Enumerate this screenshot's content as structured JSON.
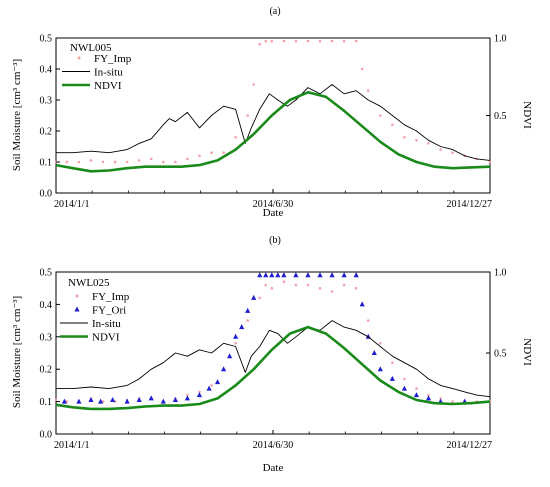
{
  "figure": {
    "panel_labels": [
      "(a)",
      "(b)"
    ]
  },
  "chart_data": [
    {
      "type": "line",
      "panel": "(a)",
      "station": "NWL005",
      "xlabel": "Date",
      "ylabel": "Soil Moisture [cm³ cm⁻³]",
      "ylabel_right": "NDVI",
      "xlim": [
        "2014-01-01",
        "2014-12-27"
      ],
      "ylim": [
        0,
        0.5
      ],
      "ylim_right": [
        0,
        1.0
      ],
      "x_ticks": [
        "2014/1/1",
        "2014/6/30",
        "2014/12/27"
      ],
      "y_ticks": [
        "0.0",
        "0.1",
        "0.2",
        "0.3",
        "0.4",
        "0.5"
      ],
      "y_ticks_right": [
        "1.0",
        "0.5"
      ],
      "legend_position": "top-left",
      "series": [
        {
          "name": "FY_Imp",
          "style": "scatter-dots",
          "color": "#f4a0a6",
          "x_doy": [
            1,
            10,
            20,
            30,
            40,
            50,
            60,
            70,
            80,
            90,
            100,
            110,
            120,
            130,
            140,
            150,
            160,
            165,
            170,
            175,
            180,
            190,
            200,
            210,
            220,
            230,
            240,
            250,
            255,
            260,
            270,
            280,
            290,
            300,
            310,
            320,
            330,
            340,
            350,
            361
          ],
          "y": [
            0.1,
            0.1,
            0.1,
            0.105,
            0.1,
            0.1,
            0.1,
            0.105,
            0.11,
            0.1,
            0.1,
            0.11,
            0.12,
            0.13,
            0.13,
            0.18,
            0.25,
            0.35,
            0.48,
            0.49,
            0.49,
            0.49,
            0.49,
            0.49,
            0.49,
            0.49,
            0.49,
            0.49,
            0.4,
            0.33,
            0.25,
            0.22,
            0.18,
            0.17,
            0.16,
            0.14,
            0.13,
            0.12,
            0.11,
            0.1
          ]
        },
        {
          "name": "In-situ",
          "style": "line",
          "color": "#000000",
          "x_doy": [
            1,
            15,
            30,
            45,
            60,
            70,
            80,
            90,
            95,
            100,
            110,
            120,
            130,
            140,
            150,
            158,
            163,
            170,
            178,
            185,
            193,
            200,
            210,
            220,
            230,
            240,
            250,
            260,
            270,
            280,
            290,
            300,
            310,
            320,
            330,
            340,
            350,
            361
          ],
          "y": [
            0.13,
            0.13,
            0.135,
            0.13,
            0.14,
            0.16,
            0.175,
            0.22,
            0.24,
            0.23,
            0.26,
            0.21,
            0.25,
            0.28,
            0.27,
            0.16,
            0.21,
            0.27,
            0.32,
            0.3,
            0.28,
            0.3,
            0.34,
            0.32,
            0.35,
            0.32,
            0.33,
            0.3,
            0.28,
            0.25,
            0.22,
            0.2,
            0.17,
            0.15,
            0.14,
            0.12,
            0.11,
            0.105
          ]
        },
        {
          "name": "NDVI",
          "style": "line-thick",
          "axis": "right",
          "color": "#1a8a1a",
          "x_doy": [
            1,
            15,
            30,
            45,
            60,
            75,
            90,
            105,
            120,
            135,
            150,
            165,
            180,
            195,
            210,
            225,
            240,
            255,
            270,
            285,
            300,
            315,
            330,
            345,
            361
          ],
          "y": [
            0.18,
            0.16,
            0.14,
            0.145,
            0.16,
            0.17,
            0.17,
            0.17,
            0.18,
            0.21,
            0.28,
            0.38,
            0.5,
            0.6,
            0.65,
            0.62,
            0.53,
            0.43,
            0.33,
            0.25,
            0.2,
            0.17,
            0.16,
            0.165,
            0.17
          ]
        }
      ]
    },
    {
      "type": "line",
      "panel": "(b)",
      "station": "NWL025",
      "xlabel": "Date",
      "ylabel": "Soil Moisture [cm³ cm⁻³]",
      "ylabel_right": "NDVI",
      "xlim": [
        "2014-01-01",
        "2014-12-27"
      ],
      "ylim": [
        0,
        0.5
      ],
      "ylim_right": [
        0,
        1.0
      ],
      "x_ticks": [
        "2014/1/1",
        "2014/6/30",
        "2014/12/27"
      ],
      "y_ticks": [
        "0.0",
        "0.1",
        "0.2",
        "0.3",
        "0.4",
        "0.5"
      ],
      "y_ticks_right": [
        "1.0",
        "0.5"
      ],
      "legend_position": "top-left",
      "series": [
        {
          "name": "FY_Imp",
          "style": "scatter-dots",
          "color": "#f4a0a6",
          "x_doy": [
            1,
            10,
            20,
            30,
            40,
            50,
            60,
            70,
            80,
            90,
            100,
            110,
            120,
            130,
            140,
            150,
            160,
            170,
            175,
            180,
            190,
            200,
            210,
            220,
            230,
            240,
            250,
            260,
            270,
            280,
            290,
            300,
            310,
            320,
            330,
            340,
            350,
            361
          ],
          "y": [
            0.105,
            0.1,
            0.1,
            0.11,
            0.1,
            0.1,
            0.105,
            0.11,
            0.11,
            0.1,
            0.11,
            0.12,
            0.13,
            0.15,
            0.2,
            0.28,
            0.35,
            0.42,
            0.46,
            0.45,
            0.47,
            0.46,
            0.46,
            0.45,
            0.44,
            0.46,
            0.45,
            0.35,
            0.28,
            0.22,
            0.17,
            0.14,
            0.12,
            0.11,
            0.1,
            0.1,
            0.1,
            0.1
          ]
        },
        {
          "name": "FY_Ori",
          "style": "scatter-triangles",
          "color": "#1f1fcf",
          "x_doy": [
            8,
            20,
            30,
            38,
            48,
            60,
            70,
            80,
            90,
            100,
            110,
            120,
            128,
            135,
            140,
            145,
            150,
            155,
            160,
            165,
            170,
            175,
            180,
            185,
            190,
            200,
            210,
            220,
            230,
            240,
            250,
            255,
            260,
            265,
            270,
            280,
            290,
            300,
            310,
            320,
            340
          ],
          "y": [
            0.1,
            0.1,
            0.105,
            0.1,
            0.105,
            0.1,
            0.105,
            0.11,
            0.1,
            0.105,
            0.11,
            0.12,
            0.14,
            0.16,
            0.2,
            0.24,
            0.3,
            0.33,
            0.38,
            0.42,
            0.49,
            0.49,
            0.49,
            0.49,
            0.49,
            0.49,
            0.49,
            0.49,
            0.49,
            0.49,
            0.49,
            0.4,
            0.3,
            0.25,
            0.2,
            0.17,
            0.14,
            0.12,
            0.11,
            0.1,
            0.1
          ]
        },
        {
          "name": "In-situ",
          "style": "line",
          "color": "#000000",
          "x_doy": [
            1,
            15,
            30,
            45,
            60,
            70,
            80,
            90,
            100,
            110,
            120,
            130,
            140,
            150,
            158,
            163,
            170,
            178,
            185,
            193,
            200,
            210,
            220,
            230,
            240,
            250,
            260,
            270,
            280,
            290,
            300,
            310,
            320,
            330,
            340,
            350,
            361
          ],
          "y": [
            0.14,
            0.14,
            0.145,
            0.14,
            0.15,
            0.17,
            0.2,
            0.22,
            0.25,
            0.24,
            0.26,
            0.25,
            0.28,
            0.27,
            0.19,
            0.24,
            0.27,
            0.32,
            0.31,
            0.28,
            0.3,
            0.33,
            0.32,
            0.35,
            0.33,
            0.32,
            0.3,
            0.27,
            0.24,
            0.22,
            0.2,
            0.17,
            0.15,
            0.14,
            0.13,
            0.12,
            0.115
          ]
        },
        {
          "name": "NDVI",
          "style": "line-thick",
          "axis": "right",
          "color": "#1a8a1a",
          "x_doy": [
            1,
            15,
            30,
            45,
            60,
            75,
            90,
            105,
            120,
            135,
            150,
            165,
            180,
            195,
            210,
            225,
            240,
            255,
            270,
            285,
            300,
            315,
            330,
            345,
            361
          ],
          "y": [
            0.18,
            0.165,
            0.155,
            0.155,
            0.16,
            0.17,
            0.175,
            0.175,
            0.185,
            0.22,
            0.3,
            0.4,
            0.52,
            0.62,
            0.66,
            0.62,
            0.53,
            0.43,
            0.33,
            0.26,
            0.21,
            0.19,
            0.185,
            0.19,
            0.2
          ]
        }
      ]
    }
  ]
}
